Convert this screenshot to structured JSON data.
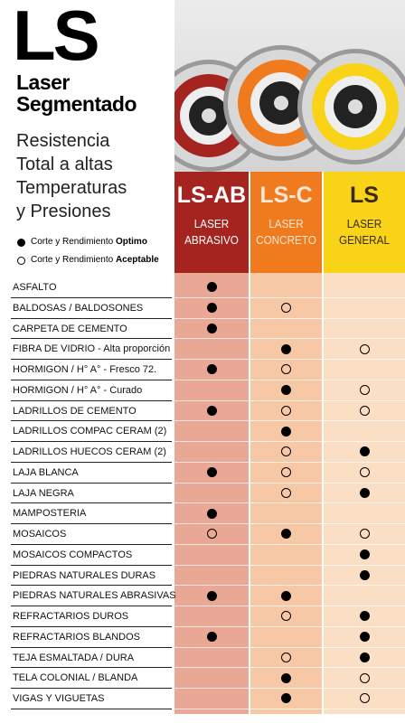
{
  "header": {
    "logo": "LS",
    "title_lines": [
      "Laser",
      "Segmentado"
    ],
    "subtitle_lines": [
      "Resistencia",
      "Total a altas",
      "Temperaturas",
      "y Presiones"
    ],
    "legend": [
      {
        "text": "Corte y Rendimiento",
        "emphasis": "Optimo",
        "symbol": "filled"
      },
      {
        "text": "Corte y Rendimiento",
        "emphasis": "Aceptable",
        "symbol": "empty"
      }
    ]
  },
  "products": [
    {
      "code": "LS-AB",
      "name_lines": [
        "LASER",
        "ABRASIVO"
      ],
      "color": "#a52420",
      "cell_color": "#e8a895",
      "text_color": "#ffffff"
    },
    {
      "code": "LS-C",
      "name_lines": [
        "LASER",
        "CONCRETO"
      ],
      "color": "#f07a1e",
      "cell_color": "#f6c8a6",
      "text_color": "#fde7d4"
    },
    {
      "code": "LS",
      "name_lines": [
        "LASER",
        "GENERAL"
      ],
      "color": "#f8d318",
      "cell_color": "#fbdfc4",
      "text_color": "#3a2a10"
    }
  ],
  "table": {
    "rows": [
      {
        "label": "ASFALTO",
        "marks": [
          "filled",
          null,
          null
        ]
      },
      {
        "label": "BALDOSAS / BALDOSONES",
        "marks": [
          "filled",
          "empty",
          null
        ]
      },
      {
        "label": "CARPETA DE CEMENTO",
        "marks": [
          "filled",
          null,
          null
        ]
      },
      {
        "label": "FIBRA DE VIDRIO - Alta proporción",
        "marks": [
          null,
          "filled",
          "empty"
        ]
      },
      {
        "label": "HORMIGON / H° A° - Fresco 72.",
        "marks": [
          "filled",
          "empty",
          null
        ]
      },
      {
        "label": "HORMIGON / H° A° - Curado",
        "marks": [
          null,
          "filled",
          "empty"
        ]
      },
      {
        "label": "LADRILLOS DE CEMENTO",
        "marks": [
          "filled",
          "empty",
          "empty"
        ]
      },
      {
        "label": "LADRILLOS COMPAC CERAM (2)",
        "marks": [
          null,
          "filled",
          null
        ]
      },
      {
        "label": "LADRILLOS HUECOS CERAM (2)",
        "marks": [
          null,
          "empty",
          "filled"
        ]
      },
      {
        "label": "LAJA BLANCA",
        "marks": [
          "filled",
          "empty",
          "empty"
        ]
      },
      {
        "label": "LAJA NEGRA",
        "marks": [
          null,
          "empty",
          "filled"
        ]
      },
      {
        "label": "MAMPOSTERIA",
        "marks": [
          "filled",
          null,
          null
        ]
      },
      {
        "label": "MOSAICOS",
        "marks": [
          "empty",
          "filled",
          "empty"
        ]
      },
      {
        "label": "MOSAICOS COMPACTOS",
        "marks": [
          null,
          null,
          "filled"
        ]
      },
      {
        "label": "PIEDRAS NATURALES DURAS",
        "marks": [
          null,
          null,
          "filled"
        ]
      },
      {
        "label": "PIEDRAS NATURALES ABRASIVAS",
        "marks": [
          "filled",
          "filled",
          null
        ]
      },
      {
        "label": "REFRACTARIOS DUROS",
        "marks": [
          null,
          "empty",
          "filled"
        ]
      },
      {
        "label": "REFRACTARIOS BLANDOS",
        "marks": [
          "filled",
          null,
          "filled"
        ]
      },
      {
        "label": "TEJA ESMALTADA / DURA",
        "marks": [
          null,
          "empty",
          "filled"
        ]
      },
      {
        "label": "TELA COLONIAL / BLANDA",
        "marks": [
          null,
          "filled",
          "empty"
        ]
      },
      {
        "label": "VIGAS Y VIGUETAS",
        "marks": [
          null,
          "filled",
          "empty"
        ]
      }
    ]
  }
}
